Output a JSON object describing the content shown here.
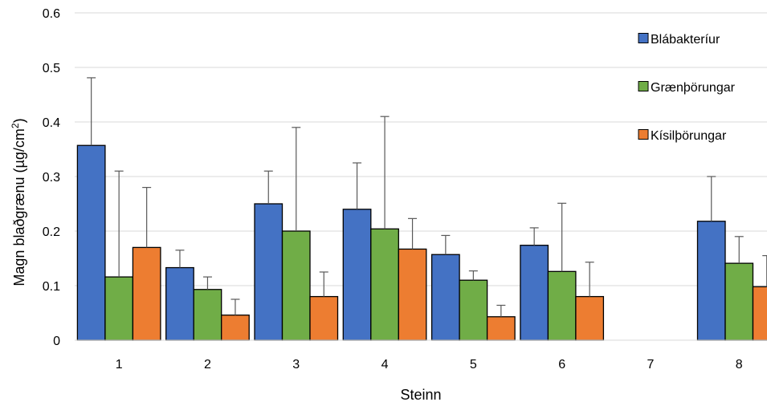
{
  "chart_data": {
    "type": "bar",
    "xlabel": "Steinn",
    "ylabel_main": "Magn blaðgrænu (µg/cm",
    "ylabel_sup": "2",
    "ylabel_end": ")",
    "ylim": [
      0,
      0.6
    ],
    "yticks": [
      0,
      0.1,
      0.2,
      0.3,
      0.4,
      0.5,
      0.6
    ],
    "ytick_labels": [
      "0",
      "0.1",
      "0.2",
      "0.3",
      "0.4",
      "0.5",
      "0.6"
    ],
    "grid": true,
    "legend_position": "right",
    "categories": [
      "1",
      "2",
      "3",
      "4",
      "5",
      "6",
      "7",
      "8"
    ],
    "series": [
      {
        "name": "Blábakteríur",
        "color": "#4472C4",
        "values": [
          0.357,
          0.133,
          0.25,
          0.24,
          0.157,
          0.174,
          null,
          0.218
        ],
        "error_upper": [
          0.481,
          0.165,
          0.31,
          0.325,
          0.192,
          0.206,
          null,
          0.3
        ]
      },
      {
        "name": "Grænþörungar",
        "color": "#70AD47",
        "values": [
          0.116,
          0.093,
          0.2,
          0.204,
          0.11,
          0.126,
          null,
          0.141
        ],
        "error_upper": [
          0.31,
          0.116,
          0.39,
          0.41,
          0.127,
          0.251,
          null,
          0.19
        ]
      },
      {
        "name": "Kísilþörungar",
        "color": "#ED7D31",
        "values": [
          0.17,
          0.046,
          0.08,
          0.167,
          0.043,
          0.08,
          null,
          0.098
        ],
        "error_upper": [
          0.28,
          0.075,
          0.125,
          0.223,
          0.064,
          0.143,
          null,
          0.155
        ]
      }
    ]
  }
}
